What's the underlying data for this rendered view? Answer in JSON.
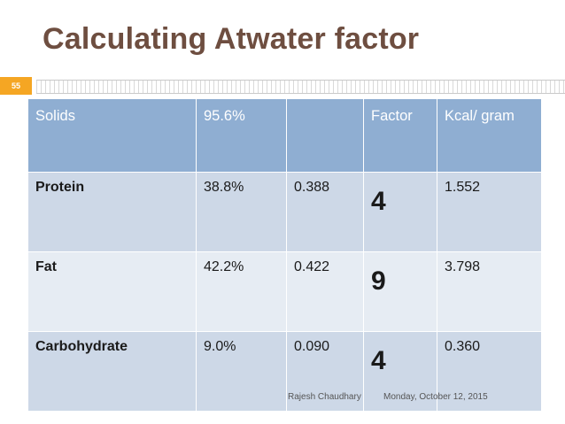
{
  "slide": {
    "title": "Calculating Atwater factor",
    "number": "55"
  },
  "table": {
    "header": [
      "Solids",
      "95.6%",
      "",
      "Factor",
      "Kcal/ gram"
    ],
    "rows": [
      {
        "name": "Protein",
        "percent": "38.8%",
        "fraction": "0.388",
        "factor": "4",
        "kcal": "1.552"
      },
      {
        "name": "Fat",
        "percent": "42.2%",
        "fraction": "0.422",
        "factor": "9",
        "kcal": "3.798"
      },
      {
        "name": "Carbohydrate",
        "percent": "9.0%",
        "fraction": "0.090",
        "factor": "4",
        "kcal": "0.360"
      }
    ]
  },
  "footer": {
    "author": "Rajesh Chaudhary",
    "date": "Monday, October 12, 2015"
  }
}
